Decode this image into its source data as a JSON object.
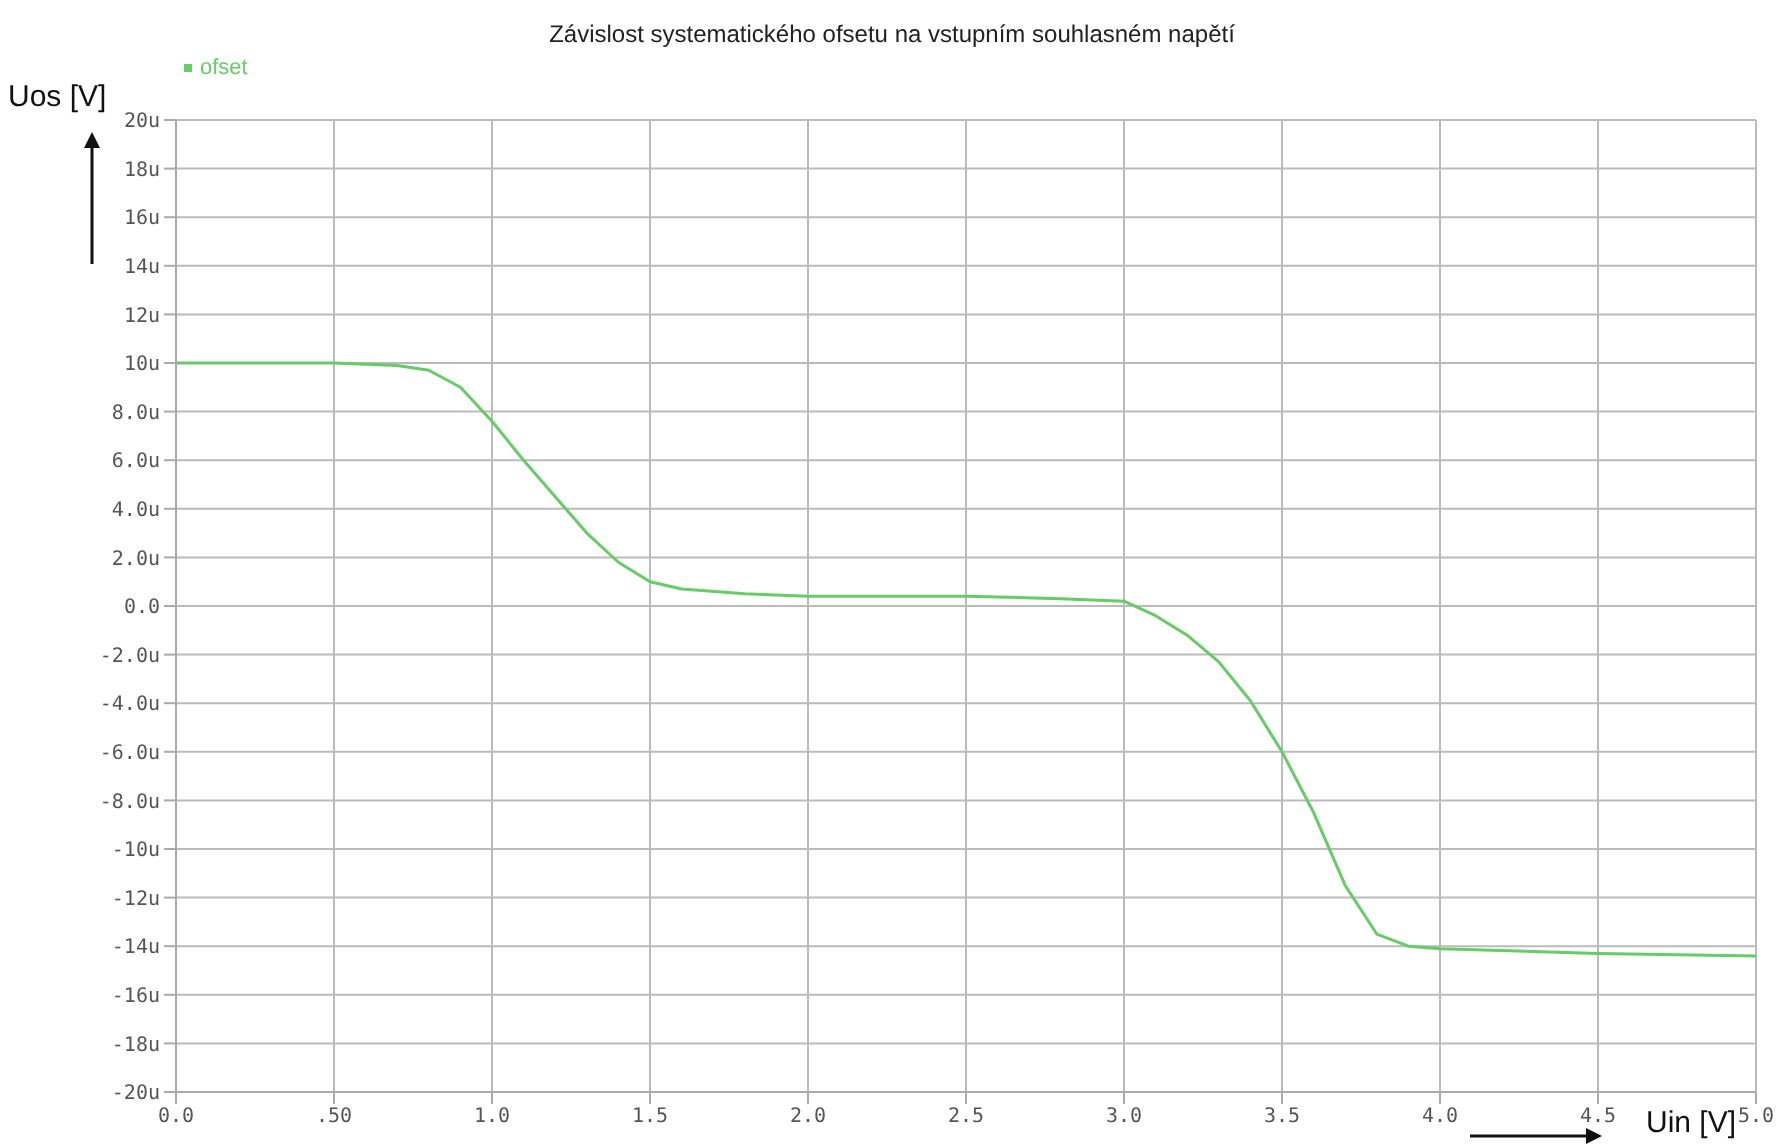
{
  "chart_data": {
    "type": "line",
    "title": "Závislost systematického  ofsetu na vstupním souhlasném napětí",
    "xlabel": "Uin [V]",
    "ylabel": "Uos [V]",
    "x": [
      0,
      0.5,
      0.7,
      0.8,
      0.9,
      1.0,
      1.1,
      1.2,
      1.3,
      1.4,
      1.5,
      1.6,
      1.8,
      2.0,
      2.5,
      2.8,
      3.0,
      3.1,
      3.2,
      3.3,
      3.4,
      3.5,
      3.6,
      3.7,
      3.8,
      3.9,
      4.0,
      4.5,
      5.0
    ],
    "series": [
      {
        "name": "ofset",
        "color": "#66cc66",
        "values": [
          10.0,
          10.0,
          9.9,
          9.7,
          9.0,
          7.6,
          6.0,
          4.5,
          3.0,
          1.8,
          1.0,
          0.7,
          0.5,
          0.4,
          0.4,
          0.3,
          0.2,
          -0.4,
          -1.2,
          -2.3,
          -3.9,
          -6.0,
          -8.5,
          -11.5,
          -13.5,
          -14.0,
          -14.1,
          -14.3,
          -14.4
        ]
      }
    ],
    "xlim": [
      0,
      5
    ],
    "xticks": [
      {
        "value": 0,
        "label": "0.0"
      },
      {
        "value": 0.5,
        "label": ".50"
      },
      {
        "value": 1,
        "label": "1.0"
      },
      {
        "value": 1.5,
        "label": "1.5"
      },
      {
        "value": 2,
        "label": "2.0"
      },
      {
        "value": 2.5,
        "label": "2.5"
      },
      {
        "value": 3,
        "label": "3.0"
      },
      {
        "value": 3.5,
        "label": "3.5"
      },
      {
        "value": 4,
        "label": "4.0"
      },
      {
        "value": 4.5,
        "label": "4.5"
      },
      {
        "value": 5,
        "label": "5.0"
      }
    ],
    "ylim": [
      -20,
      20
    ],
    "yticks": [
      {
        "value": -20,
        "label": "-20u"
      },
      {
        "value": -18,
        "label": "-18u"
      },
      {
        "value": -16,
        "label": "-16u"
      },
      {
        "value": -14,
        "label": "-14u"
      },
      {
        "value": -12,
        "label": "-12u"
      },
      {
        "value": -10,
        "label": "-10u"
      },
      {
        "value": -8,
        "label": "-8.0u"
      },
      {
        "value": -6,
        "label": "-6.0u"
      },
      {
        "value": -4,
        "label": "-4.0u"
      },
      {
        "value": -2,
        "label": "-2.0u"
      },
      {
        "value": 0,
        "label": "0.0"
      },
      {
        "value": 2,
        "label": "2.0u"
      },
      {
        "value": 4,
        "label": "4.0u"
      },
      {
        "value": 6,
        "label": "6.0u"
      },
      {
        "value": 8,
        "label": "8.0u"
      },
      {
        "value": 10,
        "label": "10u"
      },
      {
        "value": 12,
        "label": "12u"
      },
      {
        "value": 14,
        "label": "14u"
      },
      {
        "value": 16,
        "label": "16u"
      },
      {
        "value": 18,
        "label": "18u"
      },
      {
        "value": 20,
        "label": "20u"
      }
    ],
    "grid": true,
    "legend": "top left",
    "marker": "none",
    "line_style": "solid"
  }
}
